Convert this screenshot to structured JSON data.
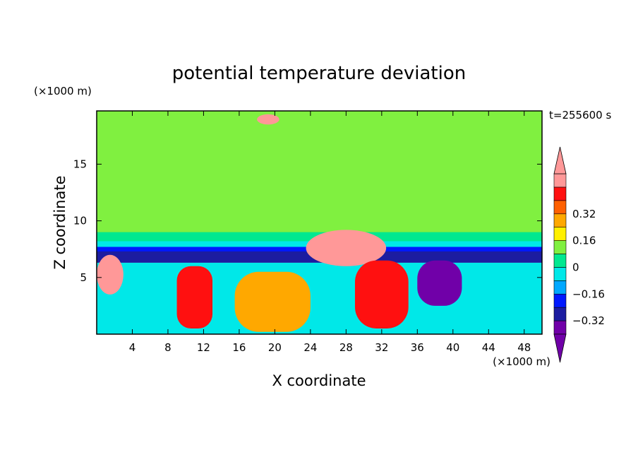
{
  "chart_data": {
    "type": "heatmap",
    "title": "potential temperature deviation",
    "xlabel": "X coordinate",
    "ylabel": "Z coordinate",
    "x_unit": "(×1000 m)",
    "y_unit": "(×1000 m)",
    "time_label": "t=255600 s",
    "xlim": [
      0,
      50
    ],
    "ylim": [
      0,
      19.7
    ],
    "xticks": [
      4,
      8,
      12,
      16,
      20,
      24,
      28,
      32,
      36,
      40,
      44,
      48
    ],
    "yticks": [
      5,
      10,
      15
    ],
    "grid": false,
    "colorbar": {
      "levels": [
        -0.48,
        -0.4,
        -0.32,
        -0.24,
        -0.16,
        -0.08,
        0,
        0.08,
        0.16,
        0.24,
        0.32,
        0.4,
        0.48
      ],
      "labeled_ticks": [
        -0.32,
        -0.16,
        0,
        0.16,
        0.32
      ],
      "tick_labels": [
        "−0.32",
        "−0.16",
        "0",
        "0.16",
        "0.32"
      ],
      "colors": [
        "#7000a8",
        "#1c1ca0",
        "#0018ff",
        "#00a8ff",
        "#00e8e8",
        "#00e890",
        "#80f040",
        "#fff000",
        "#ffa800",
        "#ff6000",
        "#ff1010",
        "#ff9898"
      ],
      "extend": "both"
    },
    "regions": [
      {
        "level": 0.04,
        "kind": "background",
        "x": [
          0,
          50
        ],
        "z": [
          8.5,
          19.7
        ]
      },
      {
        "level": 0.0,
        "kind": "band",
        "x": [
          0,
          50
        ],
        "z": [
          9.0,
          11.5
        ]
      },
      {
        "level": -0.08,
        "kind": "band",
        "x": [
          0,
          50
        ],
        "z": [
          8.0,
          9.0
        ]
      },
      {
        "level": -0.16,
        "kind": "band",
        "x": [
          0,
          50
        ],
        "z": [
          7.6,
          8.2
        ]
      },
      {
        "level": -0.32,
        "kind": "band",
        "x": [
          0,
          50
        ],
        "z": [
          7.2,
          7.7
        ]
      },
      {
        "level": -0.4,
        "kind": "band",
        "x": [
          0,
          50
        ],
        "z": [
          6.3,
          7.3
        ]
      },
      {
        "level": -0.16,
        "kind": "lower",
        "x": [
          0,
          50
        ],
        "z": [
          0,
          6.3
        ]
      },
      {
        "level": 0.48,
        "kind": "patch",
        "x": [
          23.5,
          32.5
        ],
        "z": [
          6.0,
          9.2
        ]
      },
      {
        "level": 0.32,
        "kind": "plume",
        "x": [
          29.0,
          35.0
        ],
        "z": [
          0.5,
          6.5
        ]
      },
      {
        "level": 0.32,
        "kind": "plume",
        "x": [
          9.0,
          13.0
        ],
        "z": [
          0.5,
          6.0
        ]
      },
      {
        "level": 0.16,
        "kind": "plume",
        "x": [
          15.5,
          24.0
        ],
        "z": [
          0.2,
          5.5
        ]
      },
      {
        "level": -0.48,
        "kind": "plume",
        "x": [
          36.0,
          41.0
        ],
        "z": [
          2.5,
          6.5
        ]
      },
      {
        "level": 0.48,
        "kind": "patch",
        "x": [
          18.0,
          20.5
        ],
        "z": [
          18.5,
          19.4
        ]
      },
      {
        "level": 0.48,
        "kind": "patch",
        "x": [
          0,
          3.0
        ],
        "z": [
          3.5,
          7.0
        ]
      }
    ]
  }
}
